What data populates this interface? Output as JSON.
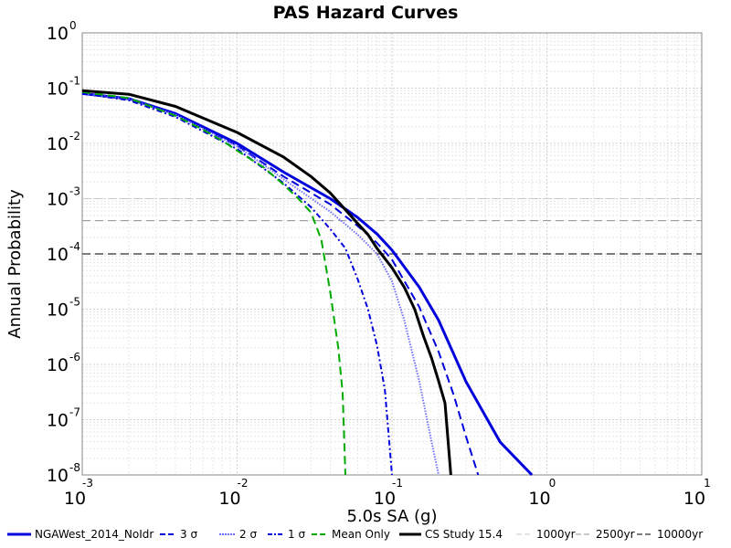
{
  "chart_data": {
    "type": "line",
    "title": "PAS Hazard Curves",
    "xlabel": "5.0s SA (g)",
    "ylabel": "Annual Probability",
    "x_scale": "log",
    "y_scale": "log",
    "xlim": [
      0.001,
      10
    ],
    "ylim": [
      1e-08,
      1
    ],
    "grid": true,
    "legend_position": "bottom",
    "x_ticks": [
      {
        "base": "10",
        "exp": "-3"
      },
      {
        "base": "10",
        "exp": "-2"
      },
      {
        "base": "10",
        "exp": "-1"
      },
      {
        "base": "10",
        "exp": "0"
      },
      {
        "base": "10",
        "exp": "1"
      }
    ],
    "y_ticks": [
      {
        "base": "10",
        "exp": "0"
      },
      {
        "base": "10",
        "exp": "-1"
      },
      {
        "base": "10",
        "exp": "-2"
      },
      {
        "base": "10",
        "exp": "-3"
      },
      {
        "base": "10",
        "exp": "-4"
      },
      {
        "base": "10",
        "exp": "-5"
      },
      {
        "base": "10",
        "exp": "-6"
      },
      {
        "base": "10",
        "exp": "-7"
      },
      {
        "base": "10",
        "exp": "-8"
      }
    ],
    "series": [
      {
        "name": "NGAWest_2014_NoIdr",
        "color": "#0000dd",
        "style": "solid",
        "width": 3,
        "points": [
          [
            0.001,
            0.08
          ],
          [
            0.002,
            0.0646
          ],
          [
            0.004,
            0.0347
          ],
          [
            0.01,
            0.01
          ],
          [
            0.02,
            0.00301
          ],
          [
            0.04,
            0.001
          ],
          [
            0.06,
            0.000457
          ],
          [
            0.08,
            0.000229
          ],
          [
            0.1,
            0.000117
          ],
          [
            0.15,
            2.5e-05
          ],
          [
            0.2,
            6.3e-06
          ],
          [
            0.3,
            4.9e-07
          ],
          [
            0.5,
            3.9e-08
          ],
          [
            0.8,
            1e-08
          ]
        ]
      },
      {
        "name": "3 σ",
        "color": "#0000dd",
        "style": "dashed",
        "width": 2,
        "points": [
          [
            0.001,
            0.08
          ],
          [
            0.002,
            0.0631
          ],
          [
            0.004,
            0.0331
          ],
          [
            0.01,
            0.0091
          ],
          [
            0.02,
            0.00251
          ],
          [
            0.04,
            0.00079
          ],
          [
            0.06,
            0.00032
          ],
          [
            0.08,
            0.000158
          ],
          [
            0.1,
            7.9e-05
          ],
          [
            0.15,
            1.1e-05
          ],
          [
            0.2,
            1.7e-06
          ],
          [
            0.25,
            2.8e-07
          ],
          [
            0.3,
            5e-08
          ],
          [
            0.36,
            1e-08
          ]
        ]
      },
      {
        "name": "2 σ",
        "color": "#7070ff",
        "style": "dotted",
        "width": 2,
        "points": [
          [
            0.001,
            0.08
          ],
          [
            0.002,
            0.0631
          ],
          [
            0.004,
            0.0331
          ],
          [
            0.01,
            0.0089
          ],
          [
            0.02,
            0.00224
          ],
          [
            0.04,
            0.00058
          ],
          [
            0.06,
            0.000224
          ],
          [
            0.08,
            0.0001
          ],
          [
            0.1,
            3.2e-05
          ],
          [
            0.12,
            6.3e-06
          ],
          [
            0.15,
            5e-07
          ],
          [
            0.18,
            4e-08
          ],
          [
            0.2,
            1e-08
          ]
        ]
      },
      {
        "name": "1 σ",
        "color": "#0000dd",
        "style": "dashdot",
        "width": 2,
        "points": [
          [
            0.001,
            0.08
          ],
          [
            0.002,
            0.0603
          ],
          [
            0.004,
            0.0302
          ],
          [
            0.01,
            0.0079
          ],
          [
            0.02,
            0.0019
          ],
          [
            0.03,
            0.0007
          ],
          [
            0.04,
            0.000282
          ],
          [
            0.05,
            0.000126
          ],
          [
            0.06,
            3.5e-05
          ],
          [
            0.07,
            1e-05
          ],
          [
            0.08,
            2.2e-06
          ],
          [
            0.09,
            3.5e-07
          ],
          [
            0.1,
            1e-08
          ]
        ]
      },
      {
        "name": "Mean Only",
        "color": "#00aa00",
        "style": "dashed",
        "width": 2,
        "points": [
          [
            0.001,
            0.085
          ],
          [
            0.002,
            0.0661
          ],
          [
            0.004,
            0.0316
          ],
          [
            0.006,
            0.0178
          ],
          [
            0.008,
            0.0112
          ],
          [
            0.01,
            0.0074
          ],
          [
            0.015,
            0.0036
          ],
          [
            0.02,
            0.00178
          ],
          [
            0.025,
            0.00098
          ],
          [
            0.03,
            0.00056
          ],
          [
            0.035,
            0.00018
          ],
          [
            0.04,
            2e-05
          ],
          [
            0.045,
            2e-06
          ],
          [
            0.048,
            3e-07
          ],
          [
            0.05,
            1e-08
          ]
        ]
      },
      {
        "name": "CS Study 15.4",
        "color": "#000000",
        "style": "solid",
        "width": 3,
        "points": [
          [
            0.001,
            0.09
          ],
          [
            0.002,
            0.0776
          ],
          [
            0.004,
            0.0468
          ],
          [
            0.01,
            0.0158
          ],
          [
            0.02,
            0.00562
          ],
          [
            0.03,
            0.00251
          ],
          [
            0.04,
            0.00126
          ],
          [
            0.05,
            0.000631
          ],
          [
            0.06,
            0.000355
          ],
          [
            0.07,
            0.000224
          ],
          [
            0.08,
            0.000126
          ],
          [
            0.1,
            5.6e-05
          ],
          [
            0.12,
            2.5e-05
          ],
          [
            0.14,
            1e-05
          ],
          [
            0.16,
            3.2e-06
          ],
          [
            0.18,
            1.3e-06
          ],
          [
            0.2,
            5e-07
          ],
          [
            0.22,
            2e-07
          ],
          [
            0.24,
            1e-08
          ]
        ]
      },
      {
        "name": "1000yr",
        "color": "#c8c8c8",
        "style": "dashed",
        "width": 1,
        "points": [
          [
            0.001,
            0.001
          ],
          [
            10,
            0.001
          ]
        ]
      },
      {
        "name": "2500yr",
        "color": "#909090",
        "style": "dashed",
        "width": 1,
        "points": [
          [
            0.001,
            0.0004
          ],
          [
            10,
            0.0004
          ]
        ]
      },
      {
        "name": "10000yr",
        "color": "#505050",
        "style": "dashed",
        "width": 1.5,
        "points": [
          [
            0.001,
            0.0001
          ],
          [
            10,
            0.0001
          ]
        ]
      }
    ]
  }
}
